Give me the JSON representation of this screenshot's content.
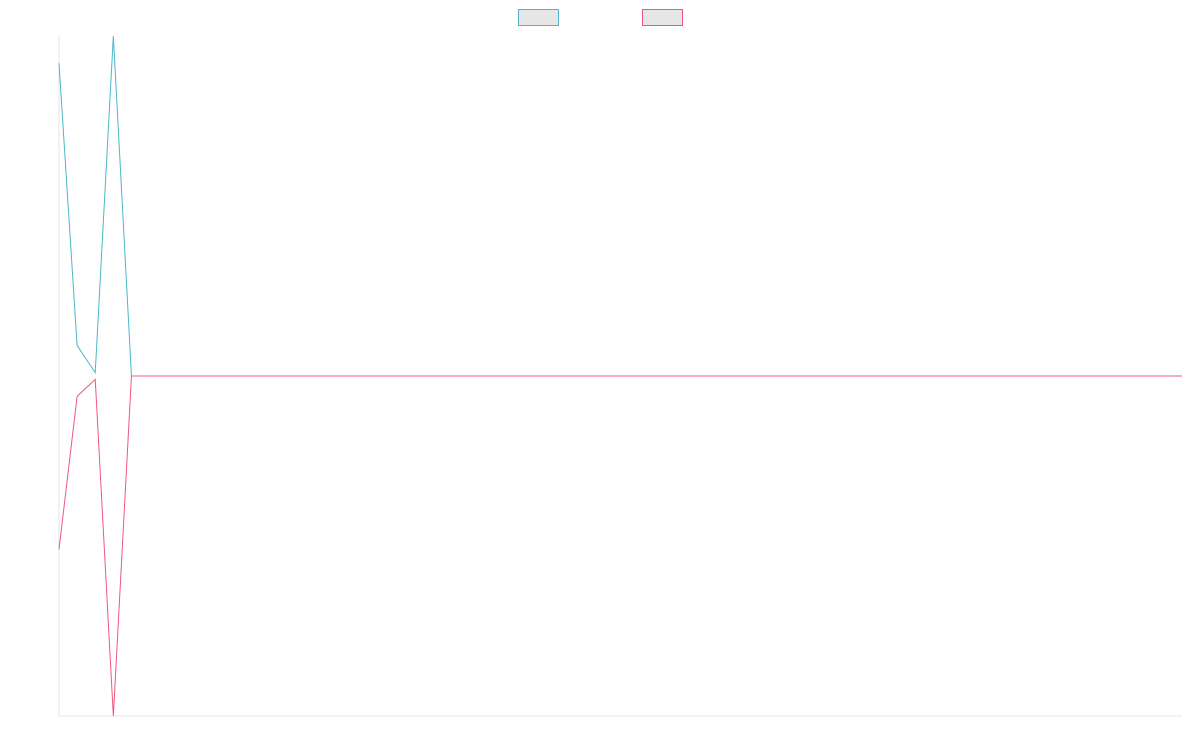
{
  "chart_data": {
    "type": "line",
    "title": "",
    "xlabel": "",
    "ylabel": "",
    "x": [
      0,
      1,
      2,
      3,
      4,
      5,
      6,
      7,
      8,
      9,
      10,
      11,
      12,
      13,
      14,
      15,
      16,
      17,
      18,
      19,
      20,
      21,
      22,
      23,
      24,
      25,
      26,
      27,
      28,
      29,
      30,
      31,
      32,
      33,
      34,
      35,
      36,
      37,
      38,
      39,
      40,
      41,
      42,
      43,
      44,
      45,
      46,
      47,
      48,
      49,
      50,
      51,
      52,
      53,
      54,
      55,
      56,
      57,
      58,
      59,
      60,
      61,
      62
    ],
    "series": [
      {
        "color": "#4bb7c9",
        "values": [
          0.92,
          0.09,
          0.01,
          1.0,
          0.0,
          0.0,
          0.0,
          0.0,
          0.0,
          0.0,
          0.0,
          0.0,
          0.0,
          0.0,
          0.0,
          0.0,
          0.0,
          0.0,
          0.0,
          0.0,
          0.0,
          0.0,
          0.0,
          0.0,
          0.0,
          0.0,
          0.0,
          0.0,
          0.0,
          0.0,
          0.0,
          0.0,
          0.0,
          0.0,
          0.0,
          0.0,
          0.0,
          0.0,
          0.0,
          0.0,
          0.0,
          0.0,
          0.0,
          0.0,
          0.0,
          0.0,
          0.0,
          0.0,
          0.0,
          0.0,
          0.0,
          0.0,
          0.0,
          0.0,
          0.0,
          0.0,
          0.0,
          0.0,
          0.0,
          0.0,
          0.0,
          0.0,
          0.0
        ]
      },
      {
        "color": "#f0587b",
        "values": [
          -0.51,
          -0.06,
          -0.01,
          -1.0,
          0.0,
          0.0,
          0.0,
          0.0,
          0.0,
          0.0,
          0.0,
          0.0,
          0.0,
          0.0,
          0.0,
          0.0,
          0.0,
          0.0,
          0.0,
          0.0,
          0.0,
          0.0,
          0.0,
          0.0,
          0.0,
          0.0,
          0.0,
          0.0,
          0.0,
          0.0,
          0.0,
          0.0,
          0.0,
          0.0,
          0.0,
          0.0,
          0.0,
          0.0,
          0.0,
          0.0,
          0.0,
          0.0,
          0.0,
          0.0,
          0.0,
          0.0,
          0.0,
          0.0,
          0.0,
          0.0,
          0.0,
          0.0,
          0.0,
          0.0,
          0.0,
          0.0,
          0.0,
          0.0,
          0.0,
          0.0,
          0.0,
          0.0,
          0.0
        ]
      }
    ],
    "xlim": [
      0,
      62
    ],
    "ylim": [
      -1.0,
      1.0
    ],
    "grid": false,
    "legend_position": "top-center"
  }
}
